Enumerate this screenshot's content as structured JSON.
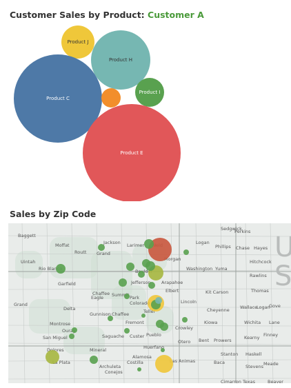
{
  "header": {
    "title_prefix": "Customer Sales by Product: ",
    "customer": "Customer A",
    "accent_color": "#4a9a3a"
  },
  "bubbles": [
    {
      "label": "Product J",
      "color": "#efc73a",
      "text_color": "#333333"
    },
    {
      "label": "Product H",
      "color": "#76b7b2",
      "text_color": "#333333"
    },
    {
      "label": "Product C",
      "color": "#4e79a7",
      "text_color": "#ffffff"
    },
    {
      "label": "",
      "color": "#f28e2b",
      "text_color": "#ffffff"
    },
    {
      "label": "Product I",
      "color": "#59a14f",
      "text_color": "#ffffff"
    },
    {
      "label": "Product E",
      "color": "#e15759",
      "text_color": "#ffffff"
    }
  ],
  "map": {
    "title": "Sales by Zip Code",
    "big_letters": [
      "U",
      "S"
    ],
    "places": [
      "Baggett",
      "Moffat",
      "Jackson",
      "Larimer",
      "Weld",
      "Logan",
      "Sedgwick",
      "Perkins",
      "Chase",
      "Hayes",
      "Phillips",
      "Routt",
      "Grand",
      "Morgan",
      "Washington",
      "Yuma",
      "Hitchcock",
      "Rio Blanco",
      "Boulder",
      "Rawlins",
      "Garfield",
      "Jefferson",
      "Arapahoe",
      "Elbert",
      "Kit Carson",
      "Thomas",
      "Eagle",
      "Summit",
      "Park",
      "Lincoln",
      "Cheyenne",
      "Wallace",
      "Logan",
      "Gove",
      "Grand",
      "Delta",
      "Gunnison",
      "Chaffee",
      "Colorado",
      "Teller",
      "Kiowa",
      "Wichita",
      "Lane",
      "Fremont",
      "Crowley",
      "Montrose",
      "Ouray",
      "San Miguel",
      "Saguache",
      "Custer",
      "Pueblo",
      "Otero",
      "Bent",
      "Prowers",
      "Kearny",
      "Finney",
      "Dolores",
      "Mineral",
      "Huerfano",
      "Stanton",
      "Haskell",
      "La Plata",
      "Archuleta",
      "Conejos",
      "Costilla",
      "Alamosa",
      "Las Animas",
      "Baca",
      "Stevens",
      "Meade",
      "Cimarron",
      "Texas",
      "Beaver",
      "Uintah",
      "Chaffee"
    ],
    "land_color": "#e9ecea",
    "water_color": "#cfe0d4"
  }
}
